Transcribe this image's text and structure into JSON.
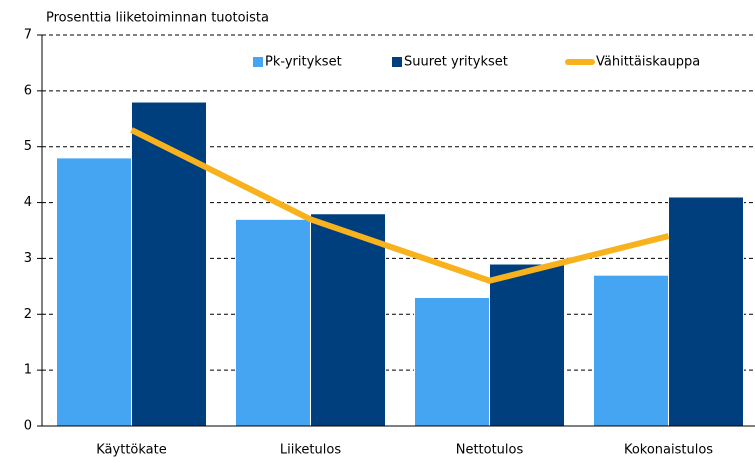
{
  "chart_data": {
    "type": "bar",
    "title": "Prosenttia liiketoiminnan tuotoista",
    "categories": [
      "Käyttökate",
      "Liiketulos",
      "Nettotulos",
      "Kokonaistulos"
    ],
    "series": [
      {
        "name": "Pk-yritykset",
        "color": "#45a5f2",
        "values": [
          4.8,
          3.7,
          2.3,
          2.7
        ]
      },
      {
        "name": "Suuret yritykset",
        "color": "#003f7d",
        "values": [
          5.8,
          3.8,
          2.9,
          4.1
        ]
      },
      {
        "name": "Vähittäiskauppa",
        "color": "#f7b21d",
        "type": "line",
        "values": [
          5.3,
          3.7,
          2.6,
          3.4
        ]
      }
    ],
    "ylim": [
      0,
      7
    ],
    "yticks": [
      0,
      1,
      2,
      3,
      4,
      5,
      6,
      7
    ],
    "grid": true,
    "legend": "top-right"
  }
}
